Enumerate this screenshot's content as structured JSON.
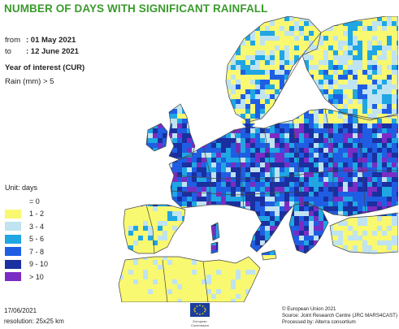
{
  "title": "NUMBER OF DAYS WITH SIGNIFICANT RAINFALL",
  "period": {
    "from_label": "from",
    "from_value": ": 01 May 2021",
    "to_label": "to",
    "to_value": ": 12 June 2021"
  },
  "year_label": "Year of interest (CUR)",
  "threshold_label": "Rain (mm) > 5",
  "legend": {
    "unit": "Unit: days",
    "items": [
      {
        "label": "= 0",
        "color": ""
      },
      {
        "label": "1 - 2",
        "color": "#f9f871"
      },
      {
        "label": "3 - 4",
        "color": "#bfe3f0"
      },
      {
        "label": "5 - 6",
        "color": "#1fa6e3"
      },
      {
        "label": "7 - 8",
        "color": "#1f5ee3"
      },
      {
        "label": "9 - 10",
        "color": "#1a2fa0"
      },
      {
        "label": "> 10",
        "color": "#7b2cc4"
      }
    ]
  },
  "footer": {
    "date": "17/06/2021",
    "resolution": "resolution: 25x25 km",
    "copyright": "© European Union 2021",
    "source": "Source: Joint Research Centre (JRC MARS4CAST)",
    "processed": "Processed by: Alterra consortium",
    "logo_text": "European Commission"
  }
}
